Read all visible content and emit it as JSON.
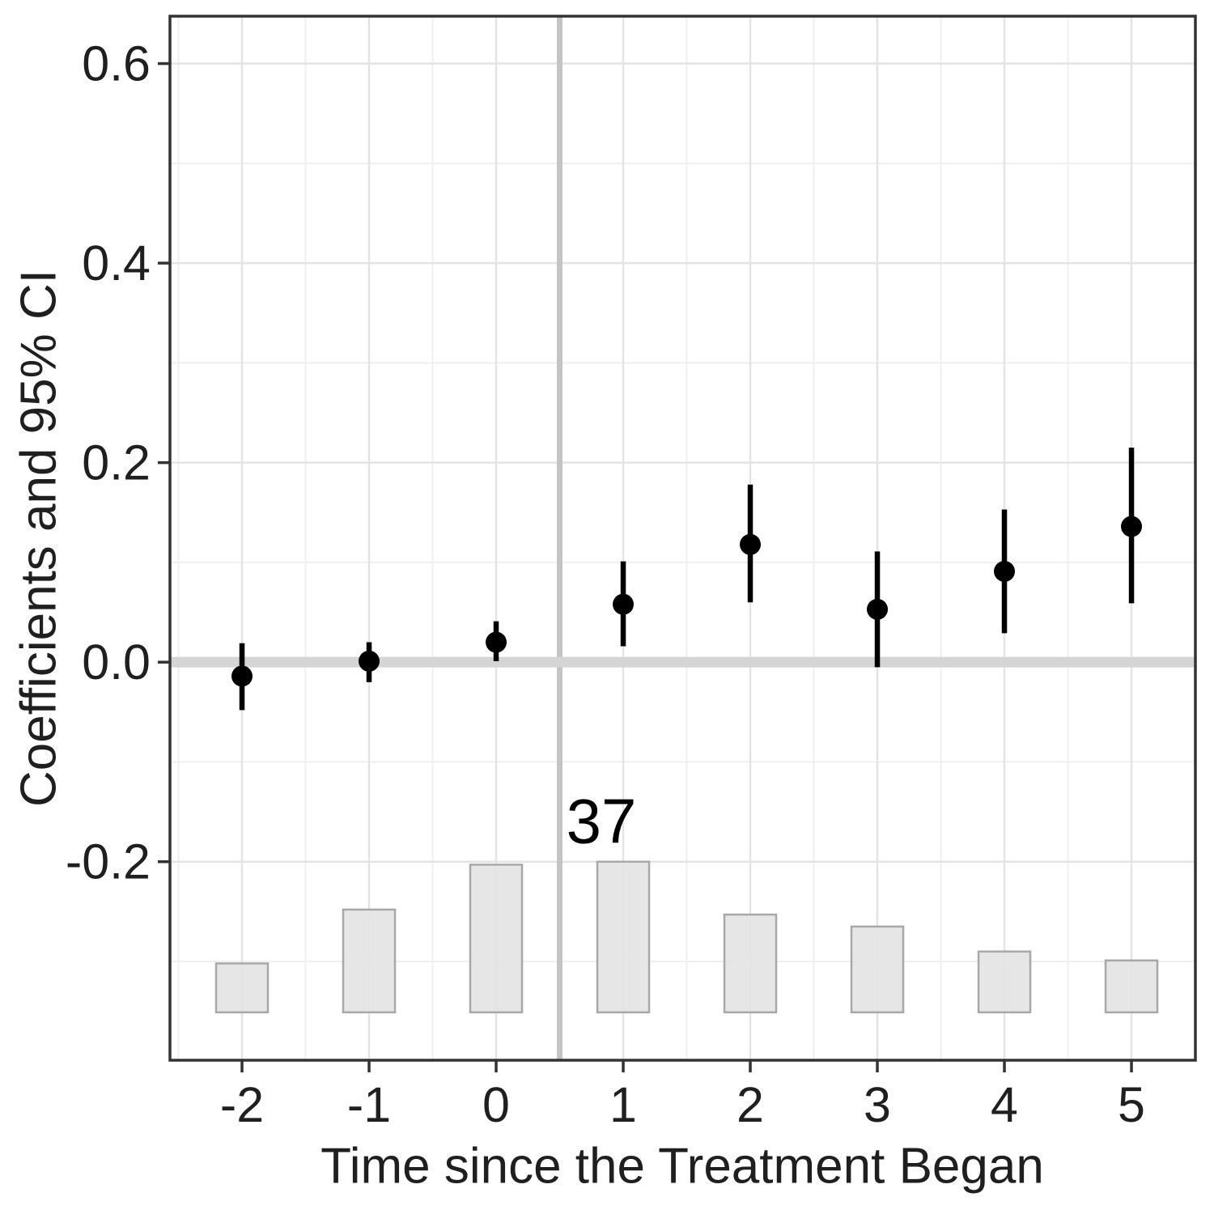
{
  "chart_data": {
    "type": "pointrange-with-histogram",
    "title": "",
    "xlabel": "Time since the Treatment Began",
    "ylabel": "Coefficients and 95% CI",
    "x": [
      -2,
      -1,
      0,
      1,
      2,
      3,
      4,
      5
    ],
    "x_tick_labels": [
      "-2",
      "-1",
      "0",
      "1",
      "2",
      "3",
      "4",
      "5"
    ],
    "y_ticks": [
      0.6,
      0.4,
      0.2,
      0.0,
      -0.2
    ],
    "y_tick_labels": [
      "0.6",
      "0.4",
      "0.2",
      "0.0",
      "-0.2"
    ],
    "xlim": [
      -2.567,
      5.503
    ],
    "ylim": [
      -0.399,
      0.6475
    ],
    "grid": true,
    "minor_x": [
      -2.5,
      -1.5,
      -0.5,
      0.5,
      1.5,
      2.5,
      3.5,
      4.5
    ],
    "minor_y": [
      0.5,
      0.3,
      0.1,
      -0.1,
      -0.3
    ],
    "series": [
      {
        "name": "coefficient",
        "values": [
          -0.014,
          0.001,
          0.02,
          0.058,
          0.118,
          0.053,
          0.091,
          0.136
        ]
      },
      {
        "name": "ci_lower",
        "values": [
          -0.048,
          -0.02,
          0.001,
          0.016,
          0.06,
          -0.005,
          0.029,
          0.059
        ]
      },
      {
        "name": "ci_upper",
        "values": [
          0.019,
          0.02,
          0.041,
          0.101,
          0.178,
          0.111,
          0.153,
          0.215
        ]
      }
    ],
    "histogram": {
      "baseline": -0.351,
      "bar_tops": [
        -0.302,
        -0.248,
        -0.203,
        -0.2,
        -0.253,
        -0.265,
        -0.29,
        -0.299
      ],
      "counts_estimated": [
        12,
        25,
        36,
        37,
        24,
        21,
        15,
        13
      ],
      "label": {
        "x": 1,
        "text": "37"
      }
    },
    "reference_lines": {
      "vline_x": 0.5,
      "hline_y": 0.0
    },
    "colors": {
      "point": "#000000",
      "errorbar": "#000000",
      "bar_fill": "#E3E3E3",
      "bar_stroke": "#A8A8A8",
      "zero_line": "#D5D5D5",
      "event_line": "#C4C4C4",
      "grid_major": "#E4E4E4",
      "grid_minor": "#EFEFEF",
      "panel_border": "#333333",
      "tick": "#333333",
      "text": "#1F1F1F"
    }
  }
}
